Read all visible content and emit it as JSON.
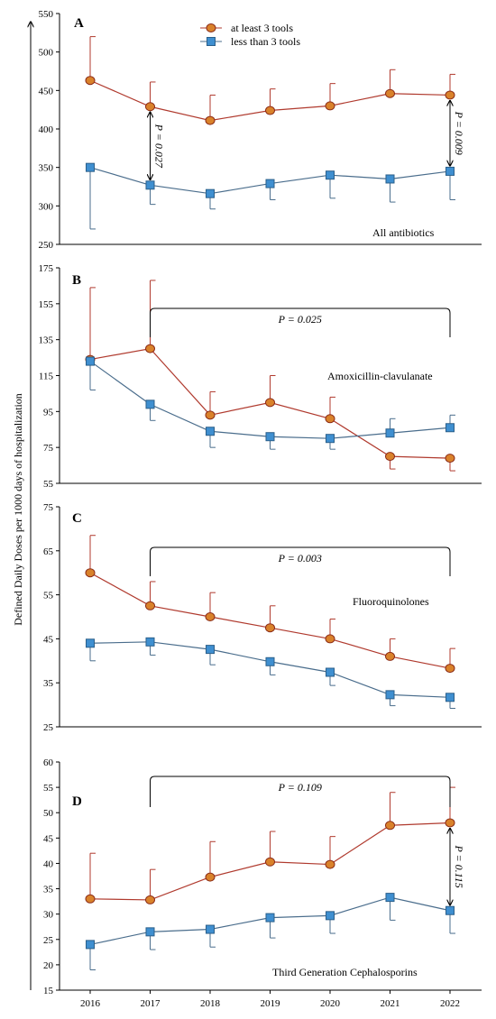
{
  "figure": {
    "ylabel": "Defined Daily  Doses per 1000  days of hospitalization",
    "legend": [
      {
        "label": "at least 3 tools",
        "marker": "circle",
        "color": "#b03a2e",
        "fill": "#d9822b"
      },
      {
        "label": "less than 3 tools",
        "marker": "square",
        "color": "#4a6d8c",
        "fill": "#3f8fd0"
      }
    ]
  },
  "chart_data": [
    {
      "type": "line",
      "panel": "A",
      "note": "All antibiotics",
      "x": [
        2016,
        2017,
        2018,
        2019,
        2020,
        2021,
        2022
      ],
      "ylim": [
        250,
        550
      ],
      "yticks": [
        250,
        300,
        350,
        400,
        450,
        500,
        550
      ],
      "series": [
        {
          "name": "at least 3 tools",
          "values": [
            463,
            429,
            411,
            424,
            430,
            446,
            444
          ],
          "err_up": [
            57,
            32,
            33,
            28,
            29,
            31,
            27
          ],
          "err_down": [
            0,
            0,
            0,
            0,
            0,
            0,
            0
          ]
        },
        {
          "name": "less than 3 tools",
          "values": [
            350,
            327,
            316,
            329,
            340,
            335,
            345
          ],
          "err_up": [
            0,
            0,
            0,
            0,
            0,
            0,
            0
          ],
          "err_down": [
            80,
            25,
            20,
            21,
            30,
            30,
            37
          ]
        }
      ],
      "annotations": [
        {
          "text": "P = 0.027",
          "type": "vertical-arrow",
          "x": 2017
        },
        {
          "text": "P = 0.009",
          "type": "vertical-arrow",
          "x": 2022
        }
      ]
    },
    {
      "type": "line",
      "panel": "B",
      "note": "Amoxicillin-clavulanate",
      "x": [
        2016,
        2017,
        2018,
        2019,
        2020,
        2021,
        2022
      ],
      "ylim": [
        55,
        175
      ],
      "yticks": [
        55,
        75,
        95,
        115,
        135,
        155,
        175
      ],
      "series": [
        {
          "name": "at least 3 tools",
          "values": [
            124,
            130,
            93,
            100,
            91,
            70,
            69
          ],
          "err_up": [
            40,
            38,
            13,
            15,
            12,
            0,
            0
          ],
          "err_down": [
            0,
            0,
            0,
            0,
            0,
            7,
            7
          ]
        },
        {
          "name": "less than 3 tools",
          "values": [
            123,
            99,
            84,
            81,
            80,
            83,
            86
          ],
          "err_up": [
            0,
            0,
            0,
            0,
            0,
            8,
            7
          ],
          "err_down": [
            16,
            9,
            9,
            7,
            6,
            0,
            0
          ]
        }
      ],
      "annotations": [
        {
          "text": "P = 0.025",
          "type": "bracket",
          "x_from": 2017,
          "x_to": 2022
        }
      ]
    },
    {
      "type": "line",
      "panel": "C",
      "note": "Fluoroquinolones",
      "x": [
        2016,
        2017,
        2018,
        2019,
        2020,
        2021,
        2022
      ],
      "ylim": [
        25,
        75
      ],
      "yticks": [
        25,
        35,
        45,
        55,
        65,
        75
      ],
      "series": [
        {
          "name": "at least 3 tools",
          "values": [
            60,
            52.5,
            50,
            47.5,
            45,
            41,
            38.3
          ],
          "err_up": [
            8.5,
            5.5,
            5.5,
            5,
            4.5,
            4,
            4.5
          ],
          "err_down": [
            0,
            0,
            0,
            0,
            0,
            0,
            0
          ]
        },
        {
          "name": "less than 3 tools",
          "values": [
            44,
            44.3,
            42.6,
            39.8,
            37.4,
            32.3,
            31.7
          ],
          "err_up": [
            0,
            0,
            0,
            0,
            0,
            0,
            0
          ],
          "err_down": [
            4,
            3,
            3.5,
            3,
            3,
            2.5,
            2.5
          ]
        }
      ],
      "annotations": [
        {
          "text": "P = 0.003",
          "type": "bracket",
          "x_from": 2017,
          "x_to": 2022
        }
      ]
    },
    {
      "type": "line",
      "panel": "D",
      "note": "Third Generation Cephalosporins",
      "x": [
        2016,
        2017,
        2018,
        2019,
        2020,
        2021,
        2022
      ],
      "ylim": [
        15,
        60
      ],
      "yticks": [
        15,
        20,
        25,
        30,
        35,
        40,
        45,
        50,
        55,
        60
      ],
      "series": [
        {
          "name": "at least 3 tools",
          "values": [
            33,
            32.8,
            37.3,
            40.3,
            39.8,
            47.5,
            48
          ],
          "err_up": [
            9,
            6,
            7,
            6,
            5.5,
            6.5,
            7
          ],
          "err_down": [
            0,
            0,
            0,
            0,
            0,
            0,
            0
          ]
        },
        {
          "name": "less than 3 tools",
          "values": [
            24,
            26.5,
            27,
            29.3,
            29.7,
            33.3,
            30.7
          ],
          "err_up": [
            0,
            0,
            0,
            0,
            0,
            0,
            0
          ],
          "err_down": [
            5,
            3.5,
            3.5,
            4,
            3.5,
            4.5,
            4.5
          ]
        }
      ],
      "annotations": [
        {
          "text": "P = 0.109",
          "type": "bracket",
          "x_from": 2017,
          "x_to": 2022
        },
        {
          "text": "P = 0.115",
          "type": "vertical-arrow",
          "x": 2022
        }
      ]
    }
  ]
}
